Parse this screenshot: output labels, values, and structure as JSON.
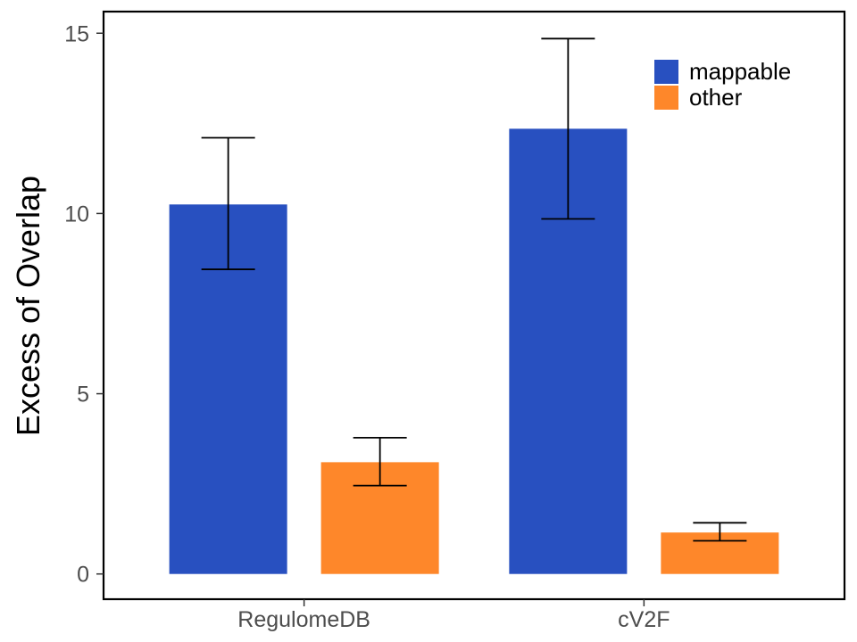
{
  "chart_data": {
    "type": "bar",
    "title": "",
    "xlabel": "",
    "ylabel": "Excess of Overlap",
    "categories": [
      "RegulomeDB",
      "cV2F"
    ],
    "series": [
      {
        "name": "mappable",
        "color": "#2850c0",
        "values": [
          10.25,
          12.35
        ],
        "err_low": [
          8.45,
          9.85
        ],
        "err_high": [
          12.1,
          14.85
        ]
      },
      {
        "name": "other",
        "color": "#fe872a",
        "values": [
          3.1,
          1.15
        ],
        "err_low": [
          2.45,
          0.92
        ],
        "err_high": [
          3.78,
          1.42
        ]
      }
    ],
    "ylim": [
      -0.7,
      15.6
    ],
    "yticks": [
      0,
      5,
      10,
      15
    ],
    "grid": false,
    "legend_position": "top-right"
  }
}
